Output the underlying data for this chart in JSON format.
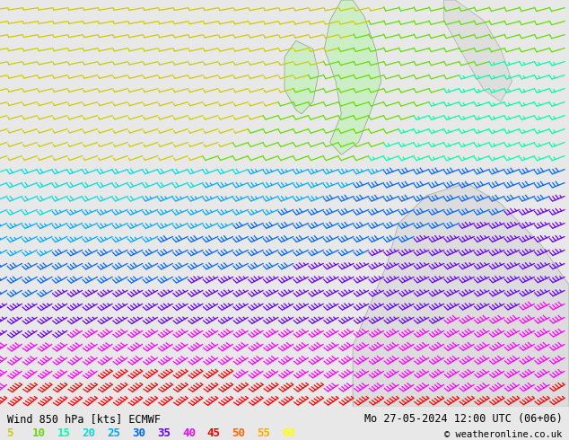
{
  "title_left": "Wind 850 hPa [kts] ECMWF",
  "title_right": "Mo 27-05-2024 12:00 UTC (06+06)",
  "copyright": "© weatheronline.co.uk",
  "legend_values": [
    5,
    10,
    15,
    20,
    25,
    30,
    35,
    40,
    45,
    50,
    55,
    60
  ],
  "legend_colors": [
    "#cccc00",
    "#66dd00",
    "#00ffaa",
    "#00dddd",
    "#00aaff",
    "#0066ff",
    "#6600ff",
    "#ff00ff",
    "#ff0000",
    "#ff6600",
    "#ffaa00",
    "#ffff00"
  ],
  "bg_color": "#e8e8e8",
  "map_bg": "#e8e8e8",
  "land_color": "#d8d8d8",
  "fig_width": 6.34,
  "fig_height": 4.9,
  "dpi": 100,
  "bottom_bar_color": "#ffffff",
  "title_fontsize": 8.5,
  "legend_fontsize": 9,
  "nx": 38,
  "ny": 30
}
